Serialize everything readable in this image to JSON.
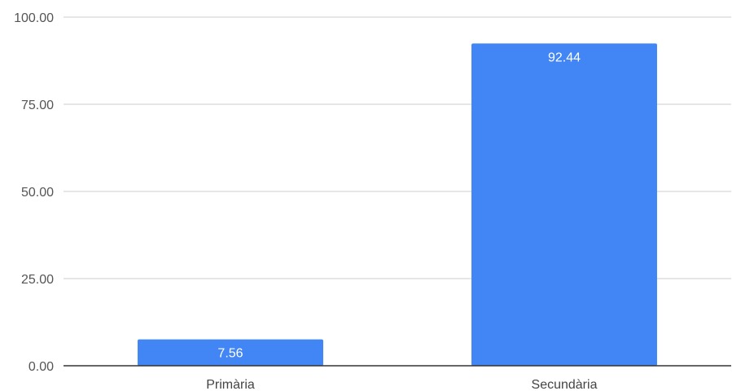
{
  "chart_data": {
    "type": "bar",
    "categories": [
      "Primària",
      "Secundària"
    ],
    "values": [
      7.56,
      92.44
    ],
    "data_labels": [
      "7.56",
      "92.44"
    ],
    "yticks": [
      "0.00",
      "25.00",
      "50.00",
      "75.00",
      "100.00"
    ],
    "ytick_values": [
      0,
      25,
      50,
      75,
      100
    ],
    "ylim": [
      0,
      100
    ],
    "grid": true,
    "bar_color": "#4285F4",
    "title": "",
    "xlabel": "",
    "ylabel": ""
  }
}
